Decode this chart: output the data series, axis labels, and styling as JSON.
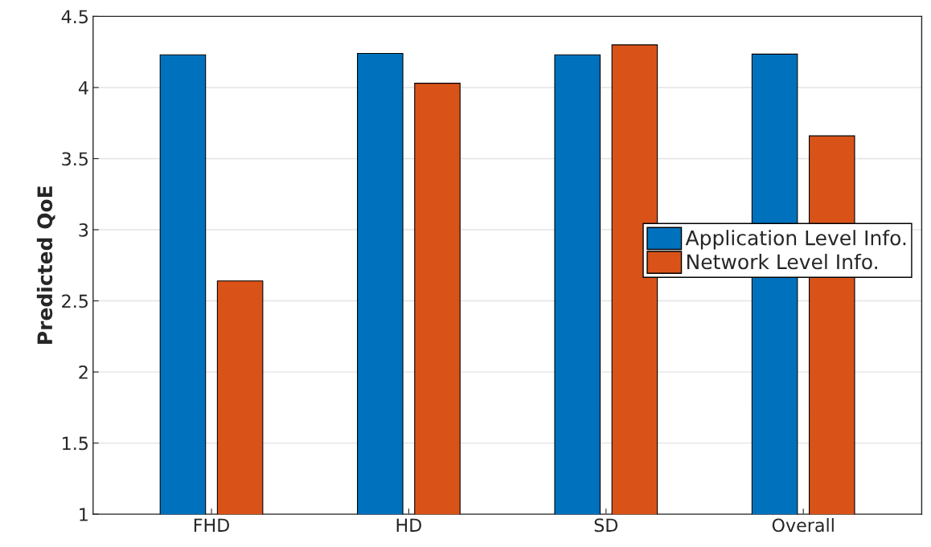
{
  "chart_data": {
    "type": "bar",
    "ylabel": "Predicted QoE",
    "categories": [
      "FHD",
      "HD",
      "SD",
      "Overall"
    ],
    "series": [
      {
        "name": "Application Level Info.",
        "color": "#0072bd",
        "values": [
          4.23,
          4.24,
          4.23,
          4.235
        ]
      },
      {
        "name": "Network Level Info.",
        "color": "#d95319",
        "values": [
          2.64,
          4.03,
          4.3,
          3.66
        ]
      }
    ],
    "ylim": [
      1,
      4.5
    ],
    "yticks": [
      1,
      1.5,
      2,
      2.5,
      3,
      3.5,
      4,
      4.5
    ],
    "grid": "y",
    "legend": "right"
  }
}
